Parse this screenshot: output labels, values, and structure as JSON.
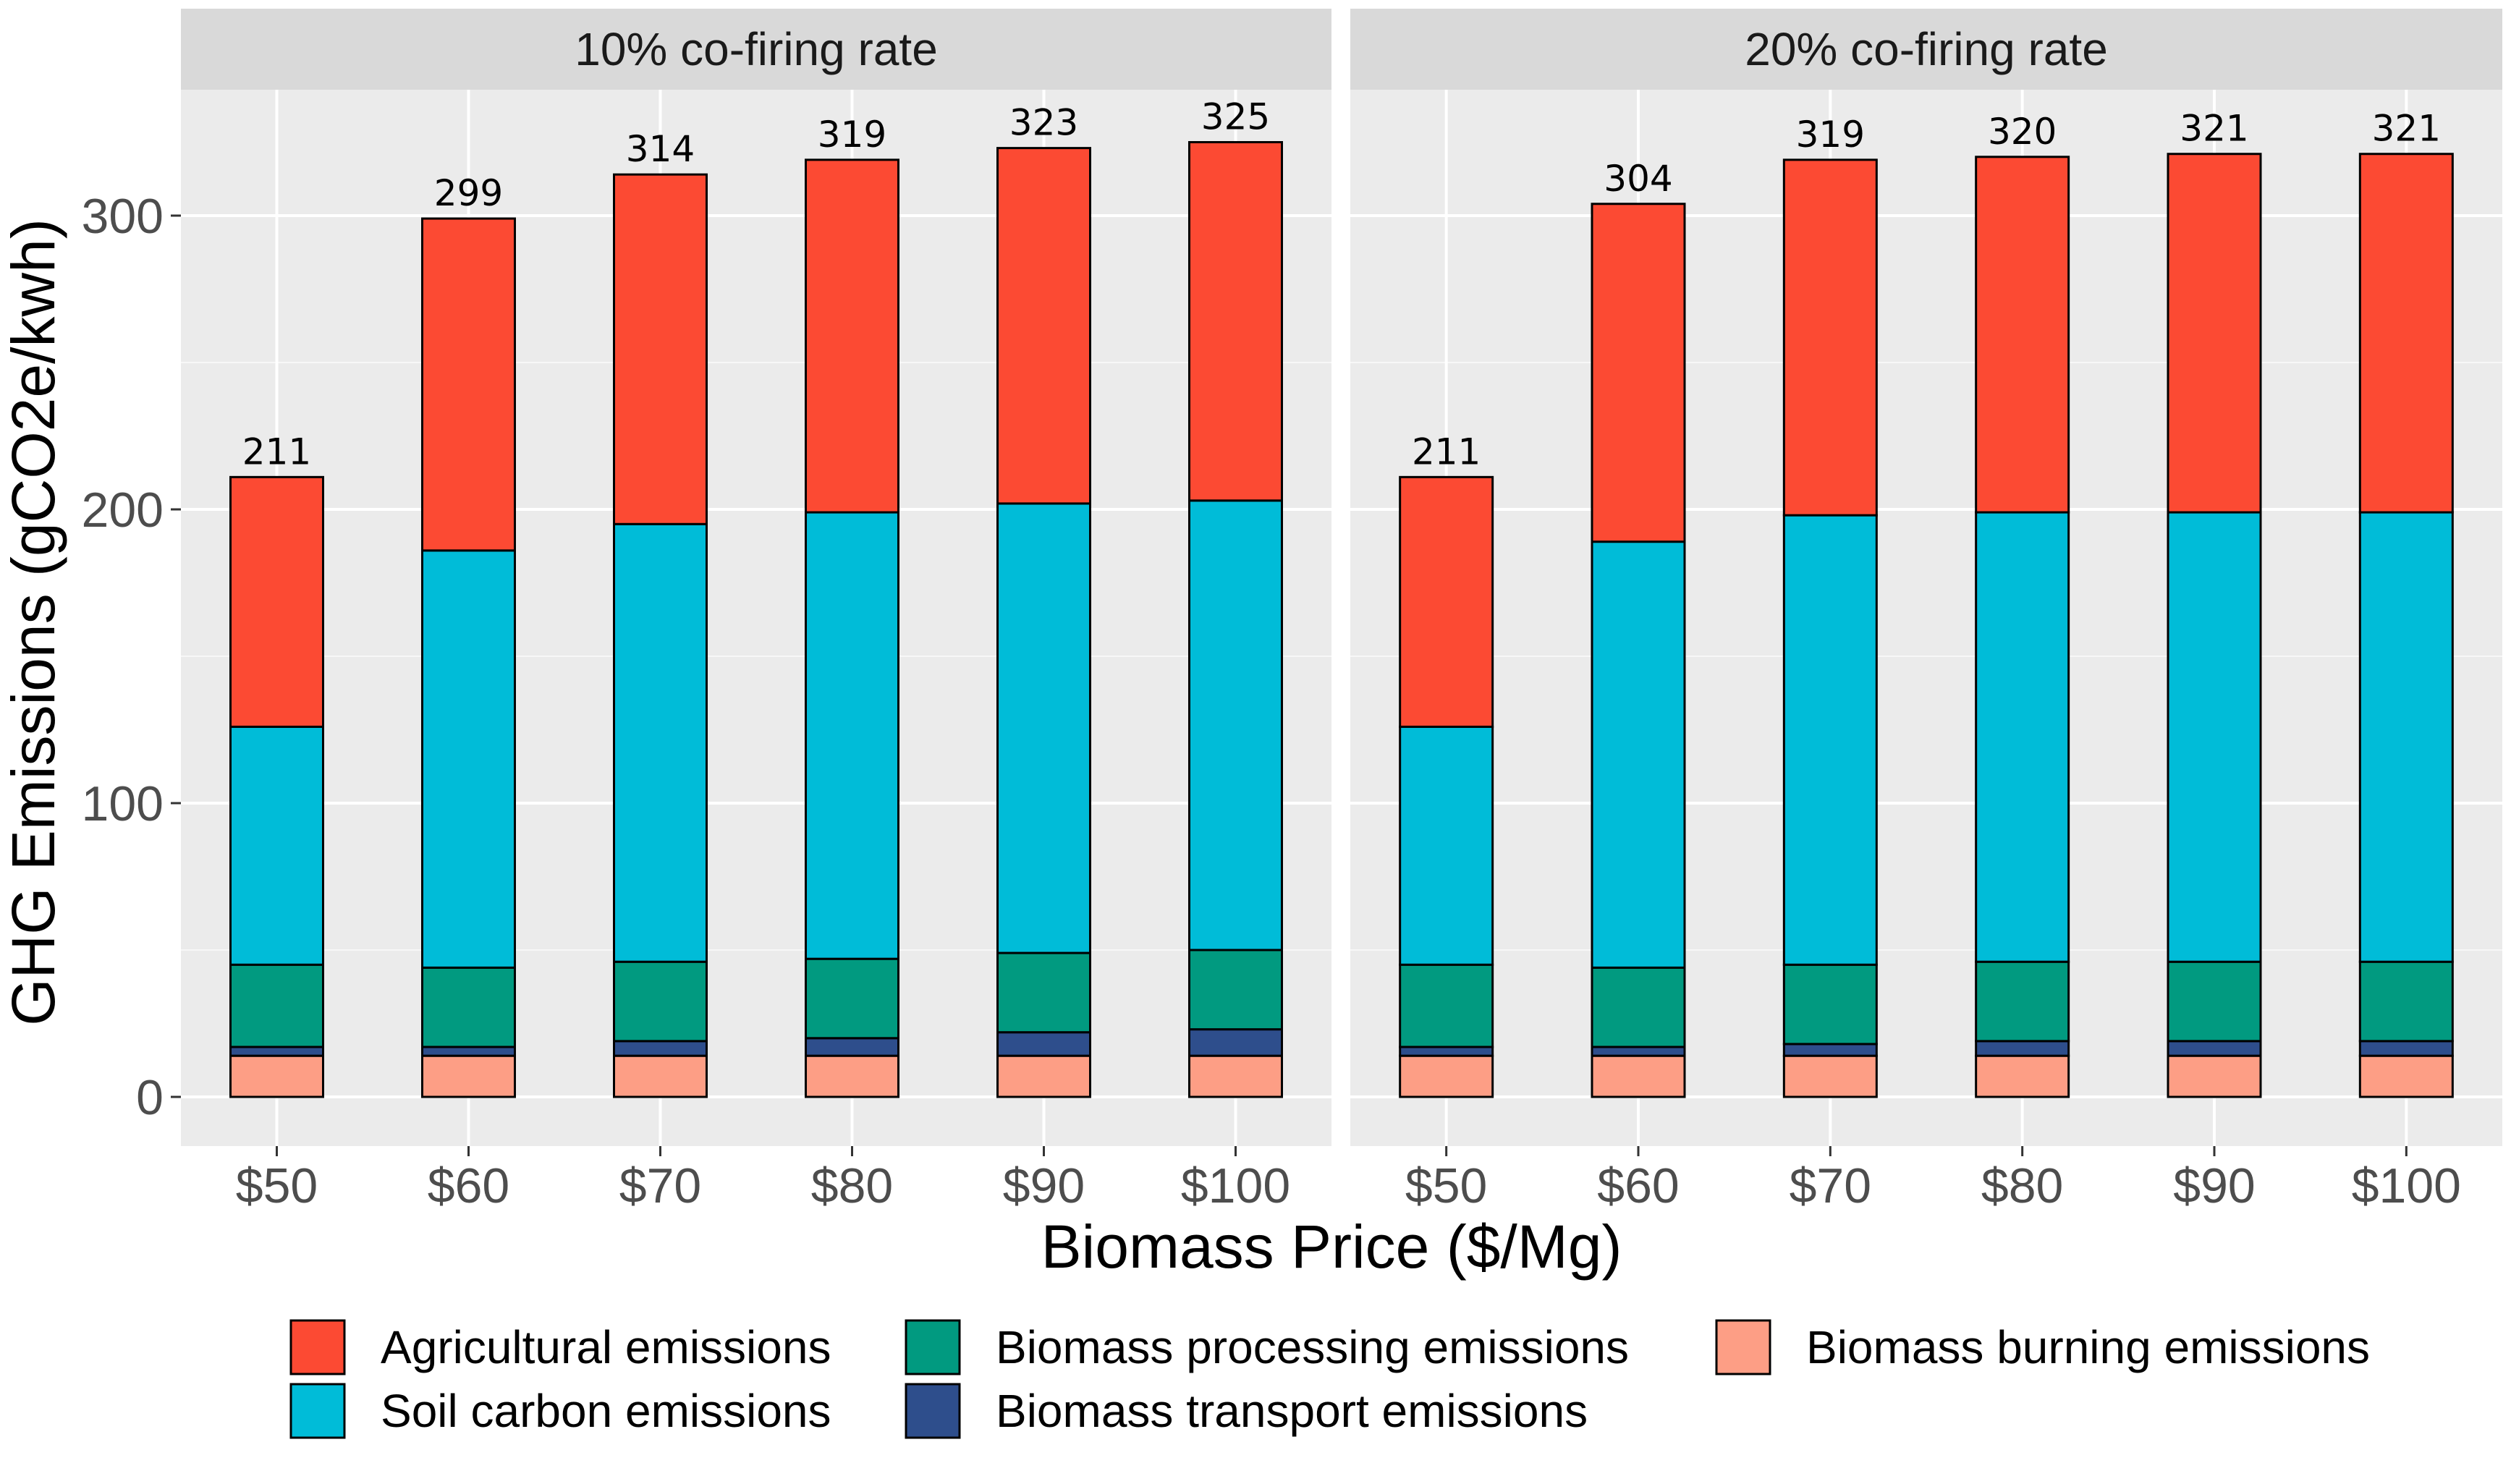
{
  "chart_data": {
    "type": "bar",
    "stacked": true,
    "xlabel": "Biomass Price ($/Mg)",
    "ylabel": "GHG Emissions (gCO2e/kwh)",
    "ylim": [
      -15,
      345
    ],
    "yticks": [
      0,
      100,
      200,
      300
    ],
    "categories": [
      "$50",
      "$60",
      "$70",
      "$80",
      "$90",
      "$100"
    ],
    "legend_position": "bottom",
    "legend": [
      {
        "name": "Agricultural emissions",
        "color": "#FC4A33"
      },
      {
        "name": "Soil carbon emissions",
        "color": "#00BCD8"
      },
      {
        "name": "Biomass processing emissions",
        "color": "#019A80"
      },
      {
        "name": "Biomass transport emissions",
        "color": "#2E4E8C"
      },
      {
        "name": "Biomass burning emissions",
        "color": "#FD9E85"
      }
    ],
    "panels": [
      {
        "title": "10% co-firing rate",
        "totals": [
          211,
          299,
          314,
          319,
          323,
          325
        ],
        "series": [
          {
            "name": "Biomass burning emissions",
            "values": [
              14,
              14,
              14,
              14,
              14,
              14
            ]
          },
          {
            "name": "Biomass transport emissions",
            "values": [
              3,
              3,
              5,
              6,
              8,
              9
            ]
          },
          {
            "name": "Biomass processing emissions",
            "values": [
              28,
              27,
              27,
              27,
              27,
              27
            ]
          },
          {
            "name": "Soil carbon emissions",
            "values": [
              81,
              142,
              149,
              152,
              153,
              153
            ]
          },
          {
            "name": "Agricultural emissions",
            "values": [
              85,
              113,
              119,
              120,
              121,
              122
            ]
          }
        ]
      },
      {
        "title": "20% co-firing rate",
        "totals": [
          211,
          304,
          319,
          320,
          321,
          321
        ],
        "series": [
          {
            "name": "Biomass burning emissions",
            "values": [
              14,
              14,
              14,
              14,
              14,
              14
            ]
          },
          {
            "name": "Biomass transport emissions",
            "values": [
              3,
              3,
              4,
              5,
              5,
              5
            ]
          },
          {
            "name": "Biomass processing emissions",
            "values": [
              28,
              27,
              27,
              27,
              27,
              27
            ]
          },
          {
            "name": "Soil carbon emissions",
            "values": [
              81,
              145,
              153,
              153,
              153,
              153
            ]
          },
          {
            "name": "Agricultural emissions",
            "values": [
              85,
              115,
              121,
              121,
              122,
              122
            ]
          }
        ]
      }
    ]
  }
}
